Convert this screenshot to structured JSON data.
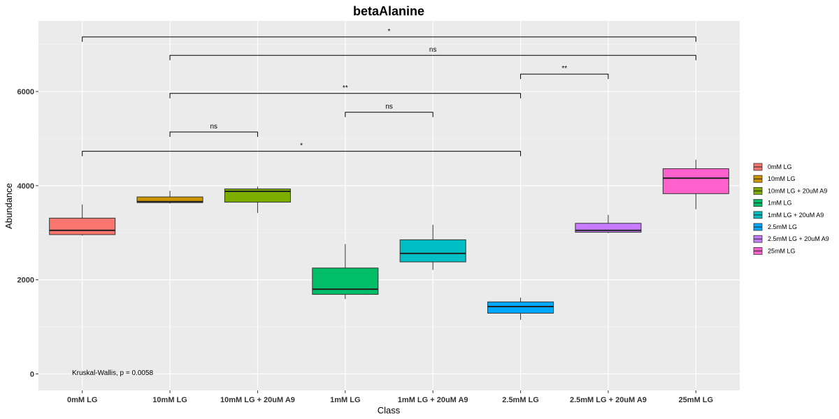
{
  "chart_data": {
    "type": "box",
    "title": "betaAlanine",
    "xlabel": "Class",
    "ylabel": "Abundance",
    "ylim": [
      -350,
      7500
    ],
    "yticks": [
      0,
      2000,
      4000,
      6000
    ],
    "grid": true,
    "legend_position": "right",
    "categories": [
      "0mM LG",
      "10mM LG",
      "10mM LG + 20uM A9",
      "1mM LG",
      "1mM LG + 20uM A9",
      "2.5mM LG",
      "2.5mM LG + 20uM A9",
      "25mM LG"
    ],
    "series": [
      {
        "name": "0mM LG",
        "color": "#F8766D",
        "min": 2940,
        "q1": 2960,
        "median": 3050,
        "q3": 3310,
        "max": 3600
      },
      {
        "name": "10mM LG",
        "color": "#CD9600",
        "min": 3620,
        "q1": 3640,
        "median": 3660,
        "q3": 3760,
        "max": 3890
      },
      {
        "name": "10mM LG + 20uM A9",
        "color": "#7CAE00",
        "min": 3420,
        "q1": 3650,
        "median": 3880,
        "q3": 3930,
        "max": 3980
      },
      {
        "name": "1mM LG",
        "color": "#00BE67",
        "min": 1590,
        "q1": 1690,
        "median": 1800,
        "q3": 2250,
        "max": 2760
      },
      {
        "name": "1mM LG + 20uM A9",
        "color": "#00BFC4",
        "min": 2210,
        "q1": 2380,
        "median": 2560,
        "q3": 2850,
        "max": 3170
      },
      {
        "name": "2.5mM LG",
        "color": "#00A9FF",
        "min": 1150,
        "q1": 1290,
        "median": 1430,
        "q3": 1530,
        "max": 1620
      },
      {
        "name": "2.5mM LG + 20uM A9",
        "color": "#C77CFF",
        "min": 2990,
        "q1": 3010,
        "median": 3050,
        "q3": 3200,
        "max": 3380
      },
      {
        "name": "25mM LG",
        "color": "#FF61CC",
        "min": 3500,
        "q1": 3830,
        "median": 4160,
        "q3": 4360,
        "max": 4550
      }
    ],
    "comparisons": [
      {
        "from": 0,
        "to": 7,
        "y": 7160,
        "label": "*"
      },
      {
        "from": 1,
        "to": 7,
        "y": 6770,
        "label": "ns"
      },
      {
        "from": 5,
        "to": 6,
        "y": 6370,
        "label": "**"
      },
      {
        "from": 1,
        "to": 5,
        "y": 5960,
        "label": "**"
      },
      {
        "from": 3,
        "to": 4,
        "y": 5560,
        "label": "ns"
      },
      {
        "from": 1,
        "to": 2,
        "y": 5140,
        "label": "ns"
      },
      {
        "from": 0,
        "to": 5,
        "y": 4730,
        "label": "*"
      }
    ],
    "annotation": "Kruskal-Wallis, p = 0.0058"
  }
}
